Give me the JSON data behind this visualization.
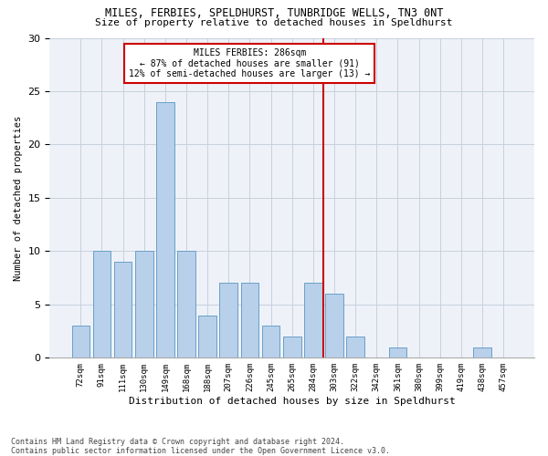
{
  "title1": "MILES, FERBIES, SPELDHURST, TUNBRIDGE WELLS, TN3 0NT",
  "title2": "Size of property relative to detached houses in Speldhurst",
  "xlabel": "Distribution of detached houses by size in Speldhurst",
  "ylabel": "Number of detached properties",
  "categories": [
    "72sqm",
    "91sqm",
    "111sqm",
    "130sqm",
    "149sqm",
    "168sqm",
    "188sqm",
    "207sqm",
    "226sqm",
    "245sqm",
    "265sqm",
    "284sqm",
    "303sqm",
    "322sqm",
    "342sqm",
    "361sqm",
    "380sqm",
    "399sqm",
    "419sqm",
    "438sqm",
    "457sqm"
  ],
  "values": [
    3,
    10,
    9,
    10,
    24,
    10,
    4,
    7,
    7,
    3,
    2,
    7,
    6,
    2,
    0,
    1,
    0,
    0,
    0,
    1,
    0
  ],
  "bar_color": "#b8d0ea",
  "bar_edge_color": "#6a9fca",
  "grid_color": "#c8d0de",
  "bg_color": "#eef2f8",
  "vline_index": 11,
  "vline_color": "#cc0000",
  "annotation_text": "MILES FERBIES: 286sqm\n← 87% of detached houses are smaller (91)\n12% of semi-detached houses are larger (13) →",
  "annotation_box_color": "#cc0000",
  "footer": "Contains HM Land Registry data © Crown copyright and database right 2024.\nContains public sector information licensed under the Open Government Licence v3.0.",
  "ylim": [
    0,
    30
  ],
  "yticks": [
    0,
    5,
    10,
    15,
    20,
    25,
    30
  ]
}
